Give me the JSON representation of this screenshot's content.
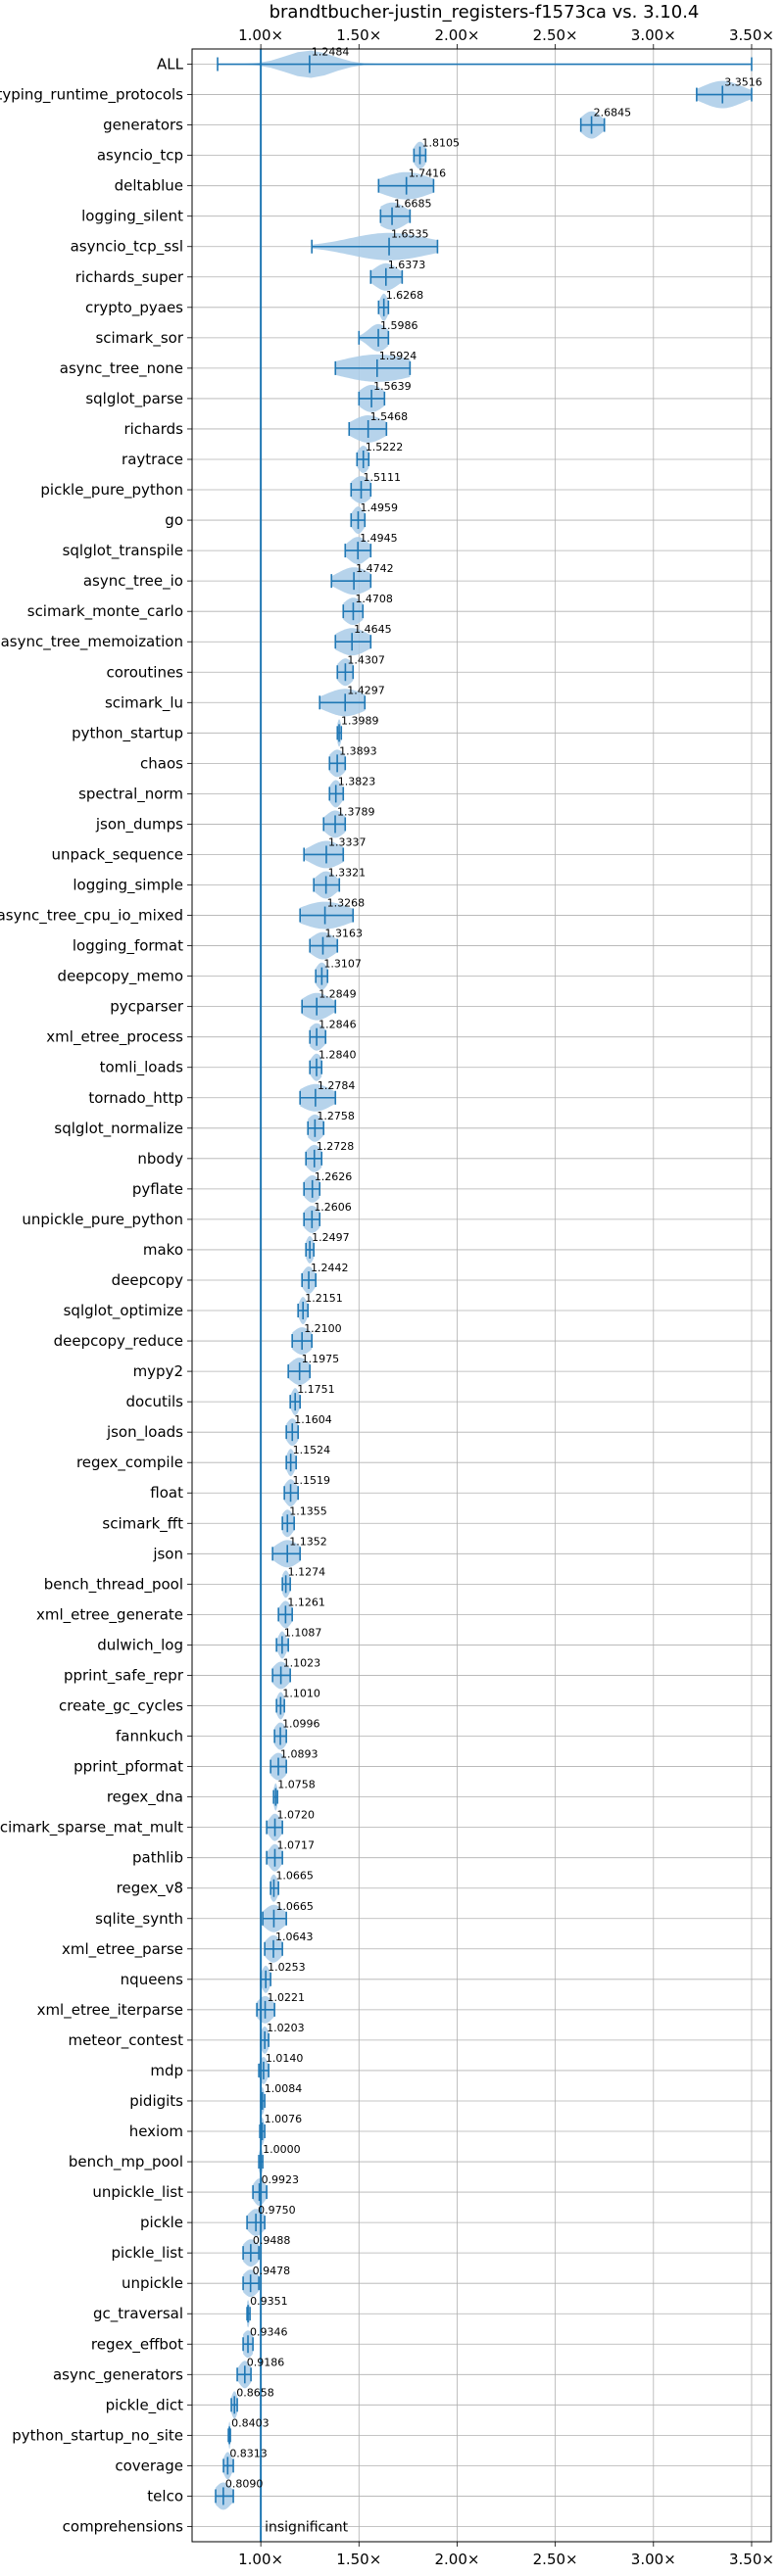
{
  "chart_data": {
    "type": "violin",
    "title": "brandtbucher-justin_registers-f1573ca vs. 3.10.4",
    "xlim": [
      0.65,
      3.6
    ],
    "xticks": [
      1.0,
      1.5,
      2.0,
      2.5,
      3.0,
      3.5
    ],
    "xtick_labels": [
      "1.00×",
      "1.50×",
      "2.00×",
      "2.50×",
      "3.00×",
      "3.50×"
    ],
    "reference_line": 1.0,
    "annotation": "insignificant",
    "grid": true,
    "color": "#1f77b4",
    "violin_color": "#a9cbe8",
    "rows": [
      {
        "name": "ALL",
        "value": 1.2484,
        "min": 0.78,
        "max": 3.5,
        "spread": 0.12
      },
      {
        "name": "typing_runtime_protocols",
        "value": 3.3516,
        "min": 3.22,
        "max": 3.5,
        "spread": 0.1
      },
      {
        "name": "generators",
        "value": 2.6845,
        "min": 2.63,
        "max": 2.75,
        "spread": 0.05
      },
      {
        "name": "asyncio_tcp",
        "value": 1.8105,
        "min": 1.78,
        "max": 1.84,
        "spread": 0.03
      },
      {
        "name": "deltablue",
        "value": 1.7416,
        "min": 1.6,
        "max": 1.88,
        "spread": 0.12
      },
      {
        "name": "logging_silent",
        "value": 1.6685,
        "min": 1.61,
        "max": 1.76,
        "spread": 0.07
      },
      {
        "name": "asyncio_tcp_ssl",
        "value": 1.6535,
        "min": 1.26,
        "max": 1.9,
        "spread": 0.2
      },
      {
        "name": "richards_super",
        "value": 1.6373,
        "min": 1.56,
        "max": 1.72,
        "spread": 0.06
      },
      {
        "name": "crypto_pyaes",
        "value": 1.6268,
        "min": 1.6,
        "max": 1.65,
        "spread": 0.02
      },
      {
        "name": "scimark_sor",
        "value": 1.5986,
        "min": 1.5,
        "max": 1.65,
        "spread": 0.05
      },
      {
        "name": "async_tree_none",
        "value": 1.5924,
        "min": 1.38,
        "max": 1.76,
        "spread": 0.18
      },
      {
        "name": "sqlglot_parse",
        "value": 1.5639,
        "min": 1.5,
        "max": 1.63,
        "spread": 0.06
      },
      {
        "name": "richards",
        "value": 1.5468,
        "min": 1.45,
        "max": 1.64,
        "spread": 0.08
      },
      {
        "name": "raytrace",
        "value": 1.5222,
        "min": 1.49,
        "max": 1.55,
        "spread": 0.03
      },
      {
        "name": "pickle_pure_python",
        "value": 1.5111,
        "min": 1.46,
        "max": 1.56,
        "spread": 0.05
      },
      {
        "name": "go",
        "value": 1.4959,
        "min": 1.46,
        "max": 1.53,
        "spread": 0.03
      },
      {
        "name": "sqlglot_transpile",
        "value": 1.4945,
        "min": 1.43,
        "max": 1.56,
        "spread": 0.05
      },
      {
        "name": "async_tree_io",
        "value": 1.4742,
        "min": 1.36,
        "max": 1.56,
        "spread": 0.08
      },
      {
        "name": "scimark_monte_carlo",
        "value": 1.4708,
        "min": 1.42,
        "max": 1.52,
        "spread": 0.05
      },
      {
        "name": "async_tree_memoization",
        "value": 1.4645,
        "min": 1.38,
        "max": 1.56,
        "spread": 0.08
      },
      {
        "name": "coroutines",
        "value": 1.4307,
        "min": 1.39,
        "max": 1.47,
        "spread": 0.04
      },
      {
        "name": "scimark_lu",
        "value": 1.4297,
        "min": 1.3,
        "max": 1.53,
        "spread": 0.1
      },
      {
        "name": "python_startup",
        "value": 1.3989,
        "min": 1.39,
        "max": 1.41,
        "spread": 0.01
      },
      {
        "name": "chaos",
        "value": 1.3893,
        "min": 1.35,
        "max": 1.43,
        "spread": 0.04
      },
      {
        "name": "spectral_norm",
        "value": 1.3823,
        "min": 1.35,
        "max": 1.42,
        "spread": 0.03
      },
      {
        "name": "json_dumps",
        "value": 1.3789,
        "min": 1.32,
        "max": 1.43,
        "spread": 0.05
      },
      {
        "name": "unpack_sequence",
        "value": 1.3337,
        "min": 1.22,
        "max": 1.42,
        "spread": 0.08
      },
      {
        "name": "logging_simple",
        "value": 1.3321,
        "min": 1.27,
        "max": 1.4,
        "spread": 0.05
      },
      {
        "name": "async_tree_cpu_io_mixed",
        "value": 1.3268,
        "min": 1.2,
        "max": 1.47,
        "spread": 0.12
      },
      {
        "name": "logging_format",
        "value": 1.3163,
        "min": 1.25,
        "max": 1.39,
        "spread": 0.06
      },
      {
        "name": "deepcopy_memo",
        "value": 1.3107,
        "min": 1.28,
        "max": 1.34,
        "spread": 0.03
      },
      {
        "name": "pycparser",
        "value": 1.2849,
        "min": 1.21,
        "max": 1.38,
        "spread": 0.07
      },
      {
        "name": "xml_etree_process",
        "value": 1.2846,
        "min": 1.25,
        "max": 1.33,
        "spread": 0.04
      },
      {
        "name": "tomli_loads",
        "value": 1.284,
        "min": 1.25,
        "max": 1.31,
        "spread": 0.03
      },
      {
        "name": "tornado_http",
        "value": 1.2784,
        "min": 1.2,
        "max": 1.38,
        "spread": 0.08
      },
      {
        "name": "sqlglot_normalize",
        "value": 1.2758,
        "min": 1.24,
        "max": 1.32,
        "spread": 0.04
      },
      {
        "name": "nbody",
        "value": 1.2728,
        "min": 1.23,
        "max": 1.31,
        "spread": 0.04
      },
      {
        "name": "pyflate",
        "value": 1.2626,
        "min": 1.22,
        "max": 1.3,
        "spread": 0.04
      },
      {
        "name": "unpickle_pure_python",
        "value": 1.2606,
        "min": 1.22,
        "max": 1.3,
        "spread": 0.04
      },
      {
        "name": "mako",
        "value": 1.2497,
        "min": 1.23,
        "max": 1.27,
        "spread": 0.02
      },
      {
        "name": "deepcopy",
        "value": 1.2442,
        "min": 1.21,
        "max": 1.28,
        "spread": 0.03
      },
      {
        "name": "sqlglot_optimize",
        "value": 1.2151,
        "min": 1.19,
        "max": 1.24,
        "spread": 0.02
      },
      {
        "name": "deepcopy_reduce",
        "value": 1.21,
        "min": 1.16,
        "max": 1.26,
        "spread": 0.05
      },
      {
        "name": "mypy2",
        "value": 1.1975,
        "min": 1.14,
        "max": 1.25,
        "spread": 0.05
      },
      {
        "name": "docutils",
        "value": 1.1751,
        "min": 1.15,
        "max": 1.2,
        "spread": 0.02
      },
      {
        "name": "json_loads",
        "value": 1.1604,
        "min": 1.13,
        "max": 1.19,
        "spread": 0.03
      },
      {
        "name": "regex_compile",
        "value": 1.1524,
        "min": 1.13,
        "max": 1.18,
        "spread": 0.02
      },
      {
        "name": "float",
        "value": 1.1519,
        "min": 1.12,
        "max": 1.19,
        "spread": 0.03
      },
      {
        "name": "scimark_fft",
        "value": 1.1355,
        "min": 1.11,
        "max": 1.17,
        "spread": 0.03
      },
      {
        "name": "json",
        "value": 1.1352,
        "min": 1.06,
        "max": 1.2,
        "spread": 0.06
      },
      {
        "name": "bench_thread_pool",
        "value": 1.1274,
        "min": 1.11,
        "max": 1.15,
        "spread": 0.02
      },
      {
        "name": "xml_etree_generate",
        "value": 1.1261,
        "min": 1.09,
        "max": 1.16,
        "spread": 0.03
      },
      {
        "name": "dulwich_log",
        "value": 1.1087,
        "min": 1.08,
        "max": 1.14,
        "spread": 0.02
      },
      {
        "name": "pprint_safe_repr",
        "value": 1.1023,
        "min": 1.06,
        "max": 1.15,
        "spread": 0.04
      },
      {
        "name": "create_gc_cycles",
        "value": 1.101,
        "min": 1.08,
        "max": 1.12,
        "spread": 0.02
      },
      {
        "name": "fannkuch",
        "value": 1.0996,
        "min": 1.07,
        "max": 1.13,
        "spread": 0.03
      },
      {
        "name": "pprint_pformat",
        "value": 1.0893,
        "min": 1.05,
        "max": 1.13,
        "spread": 0.04
      },
      {
        "name": "regex_dna",
        "value": 1.0758,
        "min": 1.065,
        "max": 1.085,
        "spread": 0.01
      },
      {
        "name": "scimark_sparse_mat_mult",
        "value": 1.072,
        "min": 1.03,
        "max": 1.11,
        "spread": 0.03
      },
      {
        "name": "pathlib",
        "value": 1.0717,
        "min": 1.03,
        "max": 1.11,
        "spread": 0.03
      },
      {
        "name": "regex_v8",
        "value": 1.0665,
        "min": 1.05,
        "max": 1.09,
        "spread": 0.02
      },
      {
        "name": "sqlite_synth",
        "value": 1.0665,
        "min": 1.01,
        "max": 1.13,
        "spread": 0.05
      },
      {
        "name": "xml_etree_parse",
        "value": 1.0643,
        "min": 1.02,
        "max": 1.11,
        "spread": 0.04
      },
      {
        "name": "nqueens",
        "value": 1.0253,
        "min": 1.0,
        "max": 1.05,
        "spread": 0.02
      },
      {
        "name": "xml_etree_iterparse",
        "value": 1.0221,
        "min": 0.98,
        "max": 1.07,
        "spread": 0.04
      },
      {
        "name": "meteor_contest",
        "value": 1.0203,
        "min": 1.0,
        "max": 1.04,
        "spread": 0.02
      },
      {
        "name": "mdp",
        "value": 1.014,
        "min": 0.99,
        "max": 1.04,
        "spread": 0.02
      },
      {
        "name": "pidigits",
        "value": 1.0084,
        "min": 1.0,
        "max": 1.02,
        "spread": 0.01
      },
      {
        "name": "hexiom",
        "value": 1.0076,
        "min": 0.995,
        "max": 1.02,
        "spread": 0.01
      },
      {
        "name": "bench_mp_pool",
        "value": 1.0,
        "min": 0.99,
        "max": 1.01,
        "spread": 0.01
      },
      {
        "name": "unpickle_list",
        "value": 0.9923,
        "min": 0.96,
        "max": 1.03,
        "spread": 0.03
      },
      {
        "name": "pickle",
        "value": 0.975,
        "min": 0.93,
        "max": 1.02,
        "spread": 0.04
      },
      {
        "name": "pickle_list",
        "value": 0.9488,
        "min": 0.91,
        "max": 0.99,
        "spread": 0.04
      },
      {
        "name": "unpickle",
        "value": 0.9478,
        "min": 0.91,
        "max": 0.99,
        "spread": 0.04
      },
      {
        "name": "gc_traversal",
        "value": 0.9351,
        "min": 0.93,
        "max": 0.945,
        "spread": 0.008
      },
      {
        "name": "regex_effbot",
        "value": 0.9346,
        "min": 0.91,
        "max": 0.96,
        "spread": 0.03
      },
      {
        "name": "async_generators",
        "value": 0.9186,
        "min": 0.88,
        "max": 0.95,
        "spread": 0.03
      },
      {
        "name": "pickle_dict",
        "value": 0.8658,
        "min": 0.85,
        "max": 0.88,
        "spread": 0.015
      },
      {
        "name": "python_startup_no_site",
        "value": 0.8403,
        "min": 0.835,
        "max": 0.845,
        "spread": 0.005
      },
      {
        "name": "coverage",
        "value": 0.8313,
        "min": 0.81,
        "max": 0.86,
        "spread": 0.02
      },
      {
        "name": "telco",
        "value": 0.809,
        "min": 0.77,
        "max": 0.86,
        "spread": 0.04
      },
      {
        "name": "comprehensions",
        "value": null,
        "min": null,
        "max": null,
        "spread": 0
      }
    ]
  }
}
